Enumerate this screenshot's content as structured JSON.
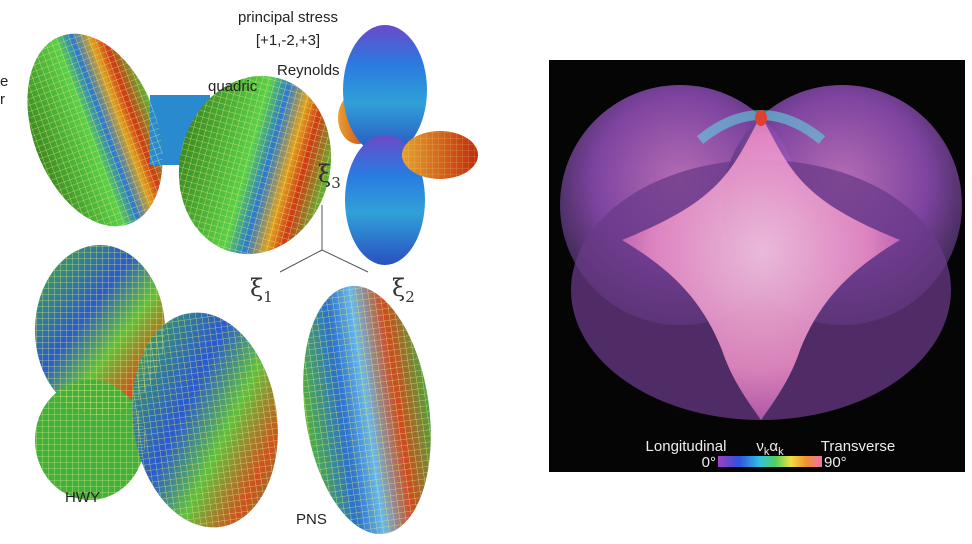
{
  "left_figure": {
    "title_line1": "principal stress",
    "title_line2": "[+1,-2,+3]",
    "edge_fragments": [
      "e",
      "r"
    ],
    "labels": {
      "quadric": "quadric",
      "reynolds": "Reynolds",
      "hwy": "HWY",
      "pns": "PNS"
    },
    "axes": [
      {
        "symbol": "ξ",
        "subscript": "3"
      },
      {
        "symbol": "ξ",
        "subscript": "1"
      },
      {
        "symbol": "ξ",
        "subscript": "2"
      }
    ]
  },
  "right_figure": {
    "legend": {
      "left": "Longitudinal",
      "symbol1": "ν",
      "sub1": "k",
      "symbol2": "α",
      "sub2": "k",
      "right": "Transverse",
      "min": "0°",
      "max": "90°"
    }
  }
}
